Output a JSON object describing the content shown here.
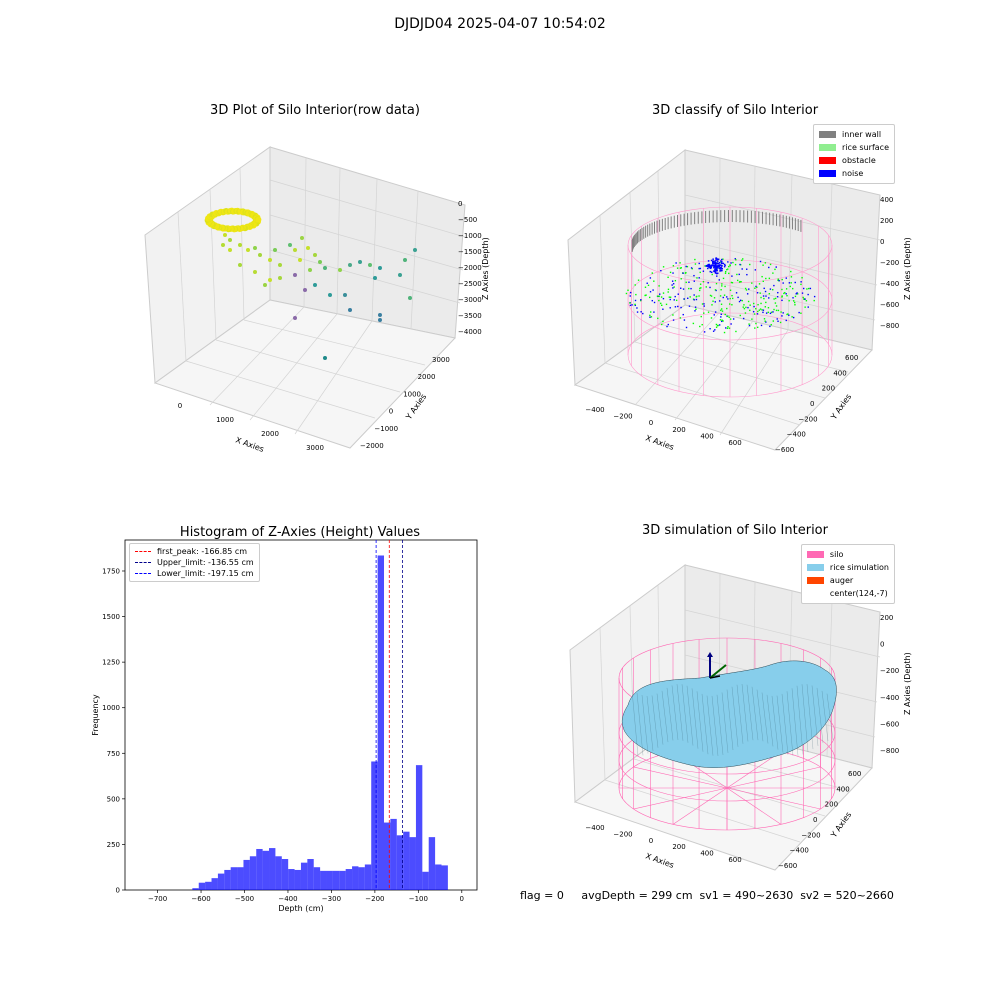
{
  "figure_title": "DJDJD04 2025-04-07 10:54:02",
  "footer_text": "flag = 0     avgDepth = 299 cm  sv1 = 490~2630  sv2 = 520~2660",
  "panels": {
    "raw": {
      "title": "3D Plot of Silo Interior(row data)",
      "xlabel": "X Axies",
      "ylabel": "Y Axies",
      "zlabel": "Z Axies (Depth)",
      "x_ticks": [
        "0",
        "1000",
        "2000",
        "3000"
      ],
      "y_ticks": [
        "3000",
        "2000",
        "1000",
        "0",
        "−1000",
        "−2000"
      ],
      "z_ticks": [
        "0",
        "−500",
        "−1000",
        "−1500",
        "−2000",
        "−2500",
        "−3000",
        "−3500",
        "−4000"
      ]
    },
    "classify": {
      "title": "3D classify of Silo Interior",
      "xlabel": "X Axies",
      "ylabel": "Y Axies",
      "zlabel": "Z Axies (Depth)",
      "x_ticks": [
        "−400",
        "−200",
        "0",
        "200",
        "400",
        "600"
      ],
      "y_ticks": [
        "600",
        "400",
        "200",
        "0",
        "−200",
        "−400",
        "−600"
      ],
      "z_ticks": [
        "400",
        "200",
        "0",
        "−200",
        "−400",
        "−600",
        "−800"
      ],
      "legend": [
        {
          "label": "inner wall",
          "color": "#808080"
        },
        {
          "label": "rice surface",
          "color": "#90ee90"
        },
        {
          "label": "obstacle",
          "color": "#ff0000"
        },
        {
          "label": "noise",
          "color": "#0000ff"
        }
      ]
    },
    "simulation": {
      "title": "3D simulation of Silo Interior",
      "xlabel": "X Axies",
      "ylabel": "Y Axies",
      "zlabel": "Z Axies (Depth)",
      "x_ticks": [
        "−400",
        "−200",
        "0",
        "200",
        "400",
        "600"
      ],
      "y_ticks": [
        "600",
        "400",
        "200",
        "0",
        "−200",
        "−400",
        "−600"
      ],
      "z_ticks": [
        "200",
        "0",
        "−200",
        "−400",
        "−600",
        "−800"
      ],
      "legend": [
        {
          "label": "silo",
          "color": "#ff69b4"
        },
        {
          "label": "rice simulation",
          "color": "#87ceeb"
        },
        {
          "label": "auger",
          "color": "#ff4500"
        },
        {
          "label": "center(124,-7)",
          "color": ""
        }
      ]
    }
  },
  "chart_data": {
    "type": "bar",
    "title": "Histogram of Z-Axies (Height) Values",
    "xlabel": "Depth (cm)",
    "ylabel": "Frequency",
    "bar_color": "#0000ff",
    "xlim": [
      -775,
      35
    ],
    "ylim": [
      0,
      1920
    ],
    "x_ticks": [
      -700,
      -600,
      -500,
      -400,
      -300,
      -200,
      -100,
      0
    ],
    "x_tick_labels": [
      "−700",
      "−600",
      "−500",
      "−400",
      "−300",
      "−200",
      "−100",
      "0"
    ],
    "y_ticks": [
      0,
      250,
      500,
      750,
      1000,
      1250,
      1500,
      1750
    ],
    "y_tick_labels": [
      "0",
      "250",
      "500",
      "750",
      "1000",
      "1250",
      "1500",
      "1750"
    ],
    "bin_start": -620,
    "bin_width": 14.7,
    "values": [
      10,
      40,
      45,
      65,
      90,
      110,
      125,
      125,
      165,
      185,
      225,
      215,
      230,
      185,
      170,
      115,
      110,
      150,
      170,
      125,
      105,
      105,
      105,
      105,
      115,
      130,
      125,
      140,
      705,
      1835,
      370,
      390,
      300,
      320,
      290,
      685,
      100,
      290,
      140,
      135
    ],
    "vlines": [
      {
        "label": "first_peak: -166.85 cm",
        "x": -166.85,
        "color": "#ff0000"
      },
      {
        "label": "Upper_limit: -136.55 cm",
        "x": -136.55,
        "color": "#00008b"
      },
      {
        "label": "Lower_limit: -197.15 cm",
        "x": -197.15,
        "color": "#0000ff"
      }
    ]
  }
}
